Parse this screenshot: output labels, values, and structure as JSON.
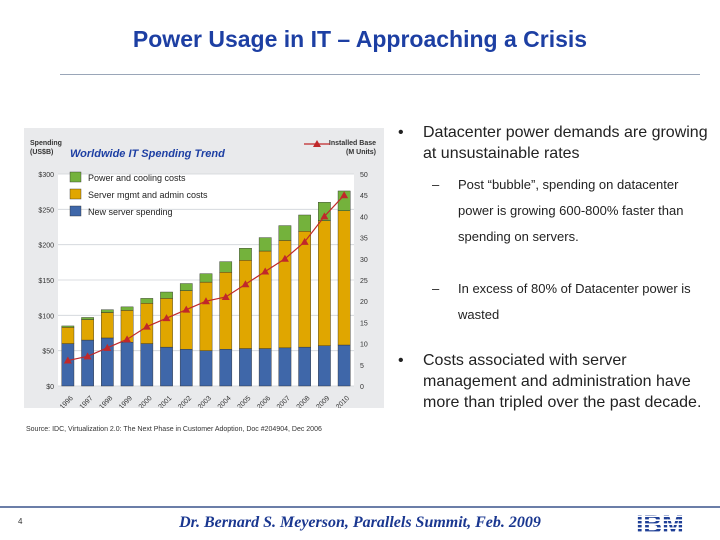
{
  "slide": {
    "title": "Power Usage in IT – Approaching a Crisis",
    "footer": "Dr. Bernard S. Meyerson,  Parallels Summit, Feb. 2009",
    "page_number": "4",
    "logo_text": "IBM"
  },
  "chart_source": "Source: IDC, Virtualization 2.0: The Next Phase in Customer Adoption, Doc #204904, Dec 2006",
  "bullets": [
    {
      "text": "Datacenter power demands are growing at unsustainable rates",
      "sub": [
        "Post “bubble”, spending on datacenter power is growing 600-800% faster than spending on servers.",
        "In excess of 80% of Datacenter power is wasted"
      ]
    },
    {
      "text": "Costs  associated with server management and administration have more than tripled over the past decade.",
      "sub": []
    }
  ],
  "chart_data": {
    "type": "bar",
    "title": "Worldwide IT Spending Trend",
    "ylabel_left": "Spending\n(US$B)",
    "ylabel_right": "Installed Base\n(M Units)",
    "categories": [
      "1996",
      "1997",
      "1998",
      "1999",
      "2000",
      "2001",
      "2002",
      "2003",
      "2004",
      "2005",
      "2006",
      "2007",
      "2008",
      "2009",
      "2010"
    ],
    "ylim_left": [
      0,
      300
    ],
    "yticks_left": [
      "$0",
      "$50",
      "$100",
      "$150",
      "$200",
      "$250",
      "$300"
    ],
    "ylim_right": [
      0,
      50
    ],
    "yticks_right": [
      "0",
      "5",
      "10",
      "15",
      "20",
      "25",
      "30",
      "35",
      "40",
      "45",
      "50"
    ],
    "series": [
      {
        "name": "New server spending",
        "values": [
          60,
          65,
          68,
          62,
          60,
          55,
          52,
          50,
          52,
          53,
          53,
          54,
          55,
          57,
          58
        ],
        "color": "#3f67a9"
      },
      {
        "name": "Server mgmt and admin costs",
        "values": [
          23,
          29,
          36,
          45,
          57,
          69,
          83,
          97,
          109,
          125,
          138,
          152,
          164,
          177,
          190
        ],
        "color": "#e0a600"
      },
      {
        "name": "Power and cooling costs",
        "values": [
          2,
          3,
          4,
          5,
          7,
          9,
          10,
          12,
          15,
          17,
          19,
          21,
          23,
          26,
          28
        ],
        "color": "#74b23c"
      }
    ],
    "line_series": {
      "name": "Installed Base",
      "axis": "right",
      "values": [
        6,
        7,
        9,
        11,
        14,
        16,
        18,
        20,
        21,
        24,
        27,
        30,
        34,
        40,
        45
      ],
      "color": "#c0282a"
    },
    "legend": "top-left"
  }
}
